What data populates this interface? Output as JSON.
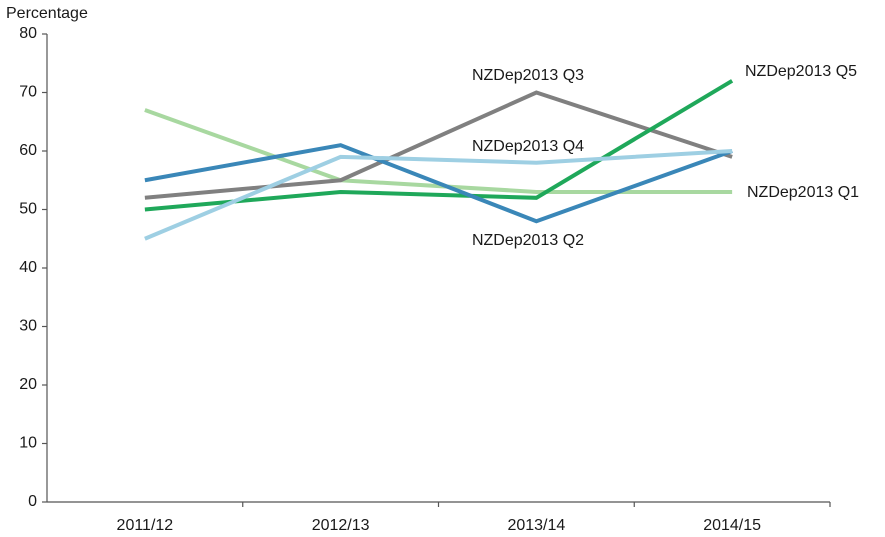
{
  "chart_data": {
    "type": "line",
    "y_label": "Percentage",
    "categories": [
      "2011/12",
      "2012/13",
      "2013/14",
      "2014/15"
    ],
    "series": [
      {
        "name": "NZDep2013 Q1",
        "color": "#a8d8a0",
        "values": [
          67,
          55,
          53,
          53
        ]
      },
      {
        "name": "NZDep2013 Q3",
        "color": "#808080",
        "values": [
          52,
          55,
          70,
          59
        ]
      },
      {
        "name": "NZDep2013 Q5",
        "color": "#1fa85a",
        "values": [
          50,
          53,
          52,
          72
        ]
      },
      {
        "name": "NZDep2013 Q2",
        "color": "#3a87b8",
        "values": [
          55,
          61,
          48,
          60
        ]
      },
      {
        "name": "NZDep2013 Q4",
        "color": "#9ecfe3",
        "values": [
          45,
          59,
          58,
          60
        ]
      }
    ],
    "ylim": [
      0,
      80
    ],
    "yticks": [
      0,
      10,
      20,
      30,
      40,
      50,
      60,
      70,
      80
    ],
    "grid": false
  }
}
